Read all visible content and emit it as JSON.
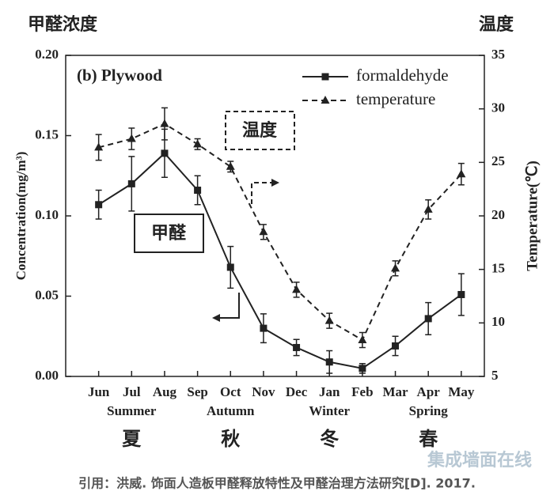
{
  "chart_data": {
    "type": "line",
    "title": "(b) Plywood",
    "left_heading": "甲醛浓度",
    "right_heading": "温度",
    "ylabel": "Concentration(mg/m³)",
    "y2label": "Temperature(℃)",
    "categories": [
      "Jun",
      "Jul",
      "Aug",
      "Sep",
      "Oct",
      "Nov",
      "Dec",
      "Jan",
      "Feb",
      "Mar",
      "Apr",
      "May"
    ],
    "seasons": [
      "Summer",
      "Autumn",
      "Winter",
      "Spring"
    ],
    "seasons_zh": [
      "夏",
      "秋",
      "冬",
      "春"
    ],
    "ylim": [
      0,
      0.2
    ],
    "yticks": [
      {
        "value": 0,
        "label": "0.00"
      },
      {
        "value": 0.05,
        "label": "0.05"
      },
      {
        "value": 0.1,
        "label": "0.10"
      },
      {
        "value": 0.15,
        "label": "0.15"
      },
      {
        "value": 0.2,
        "label": "0.20"
      }
    ],
    "y2lim": [
      5,
      35
    ],
    "y2ticks": [
      5,
      10,
      15,
      20,
      25,
      30,
      35
    ],
    "series": [
      {
        "name": "formaldehyde",
        "color": "#222222",
        "marker": "square",
        "dashed": false,
        "values": [
          0.107,
          0.12,
          0.139,
          0.116,
          0.068,
          0.03,
          0.018,
          0.009,
          0.005,
          0.019,
          0.036,
          0.051
        ],
        "errors": [
          0.009,
          0.017,
          0.015,
          0.009,
          0.013,
          0.009,
          0.005,
          0.007,
          0.003,
          0.006,
          0.01,
          0.013
        ]
      },
      {
        "name": "temperature",
        "color": "#222222",
        "marker": "triangle",
        "dashed": true,
        "axis": "y2",
        "values": [
          26.4,
          27.2,
          28.6,
          26.7,
          24.6,
          18.5,
          13.1,
          10.2,
          8.4,
          15.1,
          20.6,
          23.9
        ],
        "errors": [
          1.2,
          1.0,
          1.5,
          0.5,
          0.5,
          0.7,
          0.7,
          0.7,
          0.7,
          0.7,
          0.9,
          1.0
        ]
      }
    ],
    "annotations": [
      "温度",
      "甲醛"
    ],
    "footer": "引用：洪威. 饰面人造板甲醛释放特性及甲醛治理方法研究[D]. 2017.",
    "watermark": "集成墙面在线"
  }
}
